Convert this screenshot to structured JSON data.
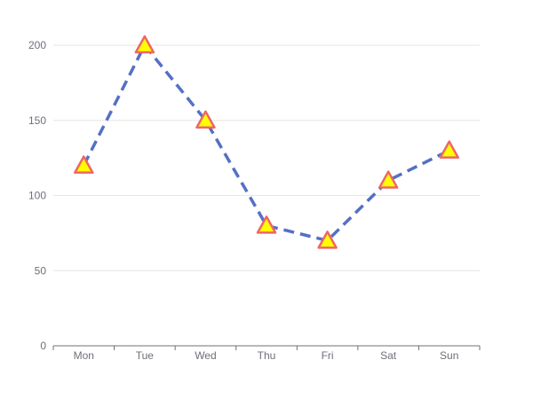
{
  "chart_data": {
    "type": "line",
    "title": "",
    "xlabel": "",
    "ylabel": "",
    "categories": [
      "Mon",
      "Tue",
      "Wed",
      "Thu",
      "Fri",
      "Sat",
      "Sun"
    ],
    "series": [
      {
        "values": [
          120,
          200,
          150,
          80,
          70,
          110,
          130
        ],
        "line_style": "dashed",
        "line_color": "#5470c6",
        "marker": "triangle",
        "marker_fill": "#ffff00",
        "marker_stroke": "#ee6666"
      }
    ],
    "ylim": [
      0,
      200
    ],
    "y_ticks": [
      0,
      50,
      100,
      150,
      200
    ],
    "grid": true,
    "legend": "none"
  }
}
